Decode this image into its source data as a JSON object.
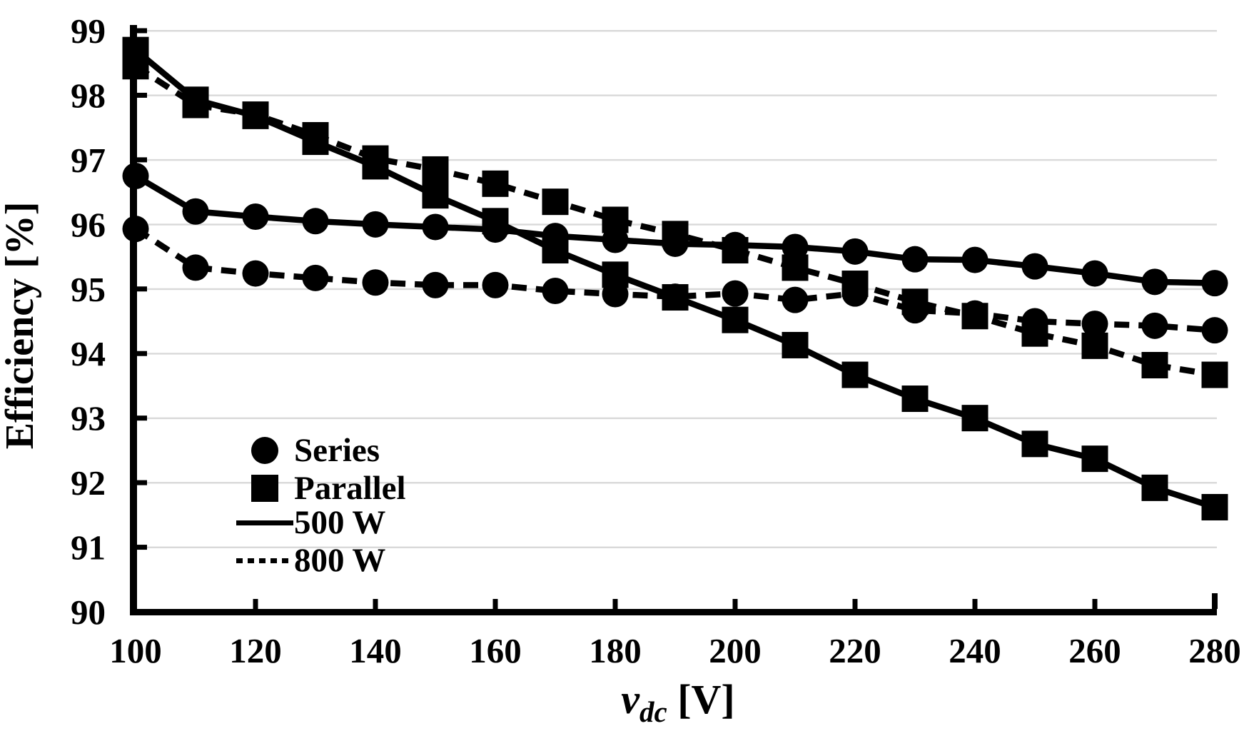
{
  "chart_data": {
    "type": "line",
    "title": "",
    "ylabel": "Efficiency [%]",
    "xlabel": {
      "variable": "v",
      "subscript": "dc",
      "unit": " [V]"
    },
    "x": [
      100,
      110,
      120,
      130,
      140,
      150,
      160,
      170,
      180,
      190,
      200,
      210,
      220,
      230,
      240,
      250,
      260,
      270,
      280
    ],
    "x_ticks": [
      100,
      120,
      140,
      160,
      180,
      200,
      220,
      240,
      260,
      280
    ],
    "y_ticks": [
      90,
      91,
      92,
      93,
      94,
      95,
      96,
      97,
      98,
      99
    ],
    "xlim": [
      100,
      280
    ],
    "ylim": [
      90,
      99
    ],
    "grid": "horizontal-only",
    "series": [
      {
        "name": "Series 500 W",
        "group": "Series",
        "power": "500 W",
        "marker": "circle",
        "line": "solid",
        "values": [
          96.75,
          96.2,
          96.12,
          96.05,
          96.0,
          95.96,
          95.92,
          95.82,
          95.76,
          95.7,
          95.68,
          95.65,
          95.58,
          95.46,
          95.45,
          95.35,
          95.24,
          95.11,
          95.09
        ]
      },
      {
        "name": "Series 800 W",
        "group": "Series",
        "power": "800 W",
        "marker": "circle",
        "line": "dashed",
        "values": [
          95.93,
          95.33,
          95.24,
          95.17,
          95.1,
          95.06,
          95.06,
          94.97,
          94.92,
          94.88,
          94.93,
          94.83,
          94.93,
          94.67,
          94.62,
          94.5,
          94.46,
          94.43,
          94.36
        ]
      },
      {
        "name": "Parallel 500 W",
        "group": "Parallel",
        "power": "500 W",
        "marker": "square",
        "line": "solid",
        "values": [
          98.7,
          97.93,
          97.68,
          97.28,
          96.9,
          96.45,
          96.05,
          95.6,
          95.22,
          94.87,
          94.52,
          94.13,
          93.67,
          93.3,
          93.0,
          92.6,
          92.37,
          91.92,
          91.62
        ]
      },
      {
        "name": "Parallel 800 W",
        "group": "Parallel",
        "power": "800 W",
        "marker": "square",
        "line": "dashed",
        "values": [
          98.45,
          97.85,
          97.7,
          97.38,
          97.02,
          96.85,
          96.63,
          96.35,
          96.07,
          95.85,
          95.6,
          95.33,
          95.08,
          94.8,
          94.58,
          94.31,
          94.12,
          93.82,
          93.67
        ]
      }
    ],
    "legend": {
      "position": "inside-bottom-left",
      "items": [
        {
          "label": "Series",
          "symbol": "circle"
        },
        {
          "label": "Parallel",
          "symbol": "square"
        },
        {
          "label": "500 W",
          "symbol": "solid-line"
        },
        {
          "label": "800 W",
          "symbol": "dotted-line"
        }
      ]
    }
  },
  "colors": {
    "foreground": "#000000",
    "gridline": "#d9d9d9",
    "background": "#ffffff"
  }
}
